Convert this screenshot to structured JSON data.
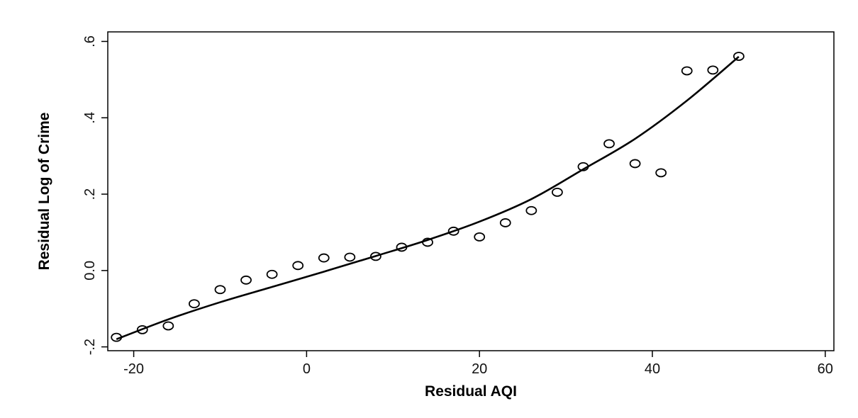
{
  "chart_data": {
    "type": "scatter",
    "title": "",
    "xlabel": "Residual AQI",
    "ylabel": "Residual Log of Crime",
    "xlim": [
      -23,
      61
    ],
    "ylim": [
      -0.21,
      0.625
    ],
    "xticks": [
      -20,
      0,
      20,
      40,
      60
    ],
    "xtick_labels": [
      "-20",
      "0",
      "20",
      "40",
      "60"
    ],
    "yticks": [
      -0.2,
      0,
      0.2,
      0.4,
      0.6
    ],
    "ytick_labels": [
      "-.2",
      "0.0",
      ".2",
      ".4",
      ".6"
    ],
    "grid": false,
    "legend": "none",
    "series": [
      {
        "type": "scatter",
        "marker": "hollow-circle",
        "x": [
          -22,
          -19,
          -16,
          -13,
          -10,
          -7,
          -4,
          -1,
          2,
          5,
          8,
          11,
          14,
          17,
          20,
          23,
          26,
          29,
          32,
          35,
          38,
          41,
          44,
          47,
          50
        ],
        "y": [
          -0.175,
          -0.155,
          -0.145,
          -0.087,
          -0.05,
          -0.025,
          -0.01,
          0.013,
          0.033,
          0.035,
          0.037,
          0.061,
          0.074,
          0.103,
          0.088,
          0.125,
          0.157,
          0.205,
          0.272,
          0.332,
          0.28,
          0.256,
          0.523,
          0.525,
          0.561
        ]
      },
      {
        "type": "line",
        "x": [
          -22,
          -16,
          -10,
          -4,
          2,
          8,
          14,
          20,
          26,
          32,
          38,
          44,
          50
        ],
        "y": [
          -0.18,
          -0.128,
          -0.083,
          -0.043,
          -0.003,
          0.038,
          0.08,
          0.128,
          0.187,
          0.265,
          0.345,
          0.445,
          0.56
        ]
      }
    ]
  }
}
